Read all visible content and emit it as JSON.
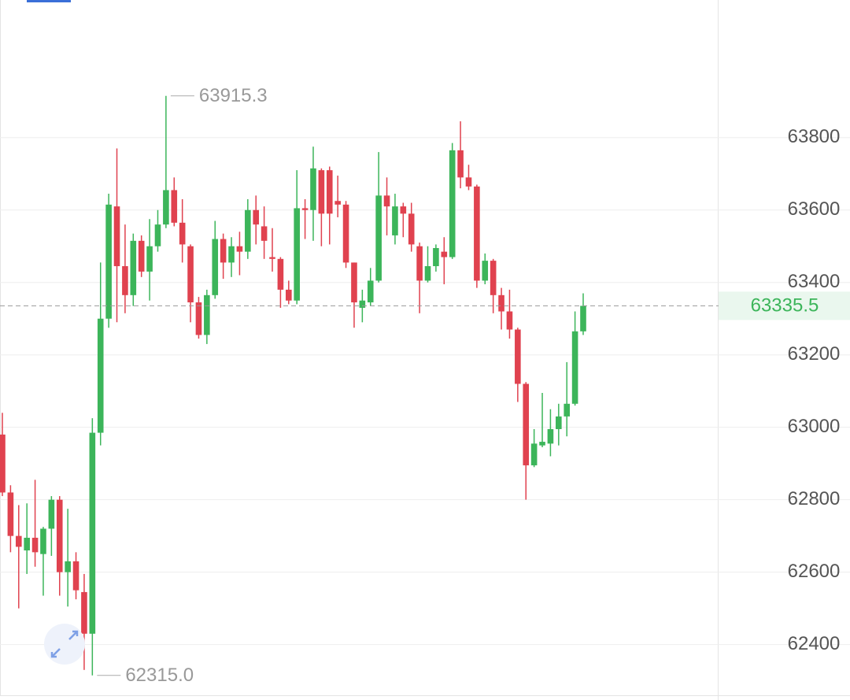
{
  "chart_data": {
    "type": "candlestick",
    "up_color": "#3cb55a",
    "down_color": "#e0424f",
    "ylim": [
      62260,
      64180
    ],
    "yticks": [
      62400,
      62600,
      62800,
      63000,
      63200,
      63400,
      63600,
      63800
    ],
    "grid": true,
    "high_label": "63915.3",
    "low_label": "62315.0",
    "last_label": "63335.5",
    "open": [
      62980,
      62820,
      62700,
      62660,
      62695,
      62650,
      62720,
      62800,
      62600,
      62630,
      62545,
      62430,
      62985,
      63300,
      63610,
      63445,
      63365,
      63515,
      63430,
      63500,
      63560,
      63655,
      63565,
      63500,
      63345,
      63255,
      63365,
      63520,
      63455,
      63500,
      63485,
      63600,
      63555,
      63470,
      63465,
      63380,
      63350,
      63605,
      63600,
      63710,
      63710,
      63625,
      63615,
      63455,
      63330,
      63345,
      63405,
      63640,
      63530,
      63610,
      63590,
      63500,
      63405,
      63445,
      63485,
      63470,
      63765,
      63690,
      63665,
      63405,
      63460,
      63365,
      63320,
      63270,
      63120,
      62895,
      62950,
      62955,
      62995,
      63030,
      63065,
      63265
    ],
    "high": [
      63040,
      62840,
      62785,
      62790,
      62855,
      62725,
      62810,
      62810,
      62775,
      62655,
      62595,
      63025,
      63455,
      63645,
      63770,
      63560,
      63535,
      63530,
      63575,
      63600,
      63915.3,
      63690,
      63630,
      63505,
      63360,
      63380,
      63570,
      63535,
      63525,
      63540,
      63630,
      63640,
      63610,
      63550,
      63470,
      63405,
      63710,
      63630,
      63775,
      63715,
      63720,
      63695,
      63625,
      63455,
      63380,
      63440,
      63760,
      63690,
      63645,
      63620,
      63620,
      63510,
      63500,
      63505,
      63525,
      63785,
      63845,
      63725,
      63670,
      63480,
      63465,
      63385,
      63380,
      63275,
      63125,
      62995,
      63095,
      63050,
      63065,
      63180,
      63320,
      63370
    ],
    "low": [
      62810,
      62655,
      62500,
      62595,
      62615,
      62535,
      62645,
      62535,
      62505,
      62525,
      62330,
      62315,
      62950,
      63275,
      63290,
      63315,
      63335,
      63415,
      63350,
      63485,
      63550,
      63555,
      63455,
      63290,
      63245,
      63230,
      63355,
      63410,
      63415,
      63420,
      63465,
      63505,
      63465,
      63430,
      63330,
      63340,
      63340,
      63520,
      63515,
      63500,
      63505,
      63580,
      63440,
      63275,
      63290,
      63335,
      63400,
      63530,
      63505,
      63525,
      63485,
      63315,
      63400,
      63430,
      63395,
      63465,
      63660,
      63655,
      63385,
      63395,
      63315,
      63270,
      63245,
      63070,
      62800,
      62890,
      62945,
      62920,
      62950,
      62975,
      63060,
      63255
    ],
    "close": [
      62820,
      62700,
      62670,
      62695,
      62655,
      62720,
      62800,
      62600,
      62630,
      62550,
      62430,
      62985,
      63300,
      63615,
      63445,
      63365,
      63515,
      63430,
      63500,
      63560,
      63655,
      63565,
      63505,
      63345,
      63255,
      63365,
      63520,
      63455,
      63500,
      63485,
      63600,
      63560,
      63515,
      63465,
      63380,
      63350,
      63605,
      63600,
      63715,
      63590,
      63590,
      63615,
      63455,
      63345,
      63350,
      63405,
      63640,
      63610,
      63610,
      63590,
      63505,
      63405,
      63445,
      63495,
      63470,
      63765,
      63690,
      63665,
      63405,
      63460,
      63365,
      63320,
      63270,
      63120,
      62895,
      62955,
      62960,
      62995,
      63030,
      63065,
      63265,
      63335.5
    ]
  }
}
